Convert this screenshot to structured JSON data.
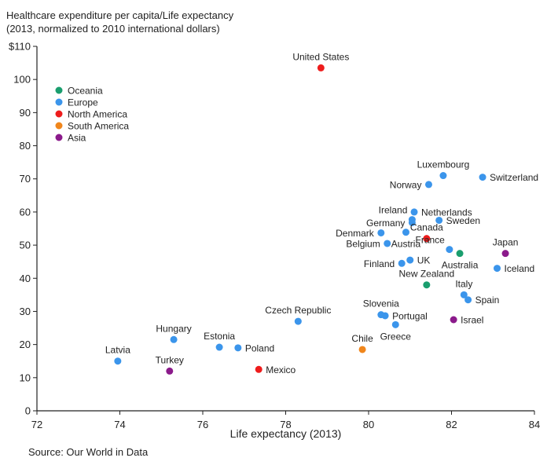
{
  "chart_data": {
    "type": "scatter",
    "title_lines": [
      "Healthcare expenditure per capita/Life expectancy",
      "(2013, normalized to 2010 international dollars)"
    ],
    "xlabel": "Life expectancy (2013)",
    "ylabel": "",
    "xlim": [
      72,
      84
    ],
    "ylim": [
      0,
      110
    ],
    "x_ticks": [
      72,
      74,
      76,
      78,
      80,
      82,
      84
    ],
    "y_ticks": [
      0,
      10,
      20,
      30,
      40,
      50,
      60,
      70,
      80,
      90,
      100,
      110
    ],
    "y_tick_labels": [
      "0",
      "10",
      "20",
      "30",
      "40",
      "50",
      "60",
      "70",
      "80",
      "90",
      "100",
      "$110"
    ],
    "grid": false,
    "legend_position": "top-left",
    "groups": [
      {
        "name": "Oceania",
        "color": "#1a9e6e"
      },
      {
        "name": "Europe",
        "color": "#3b95eb"
      },
      {
        "name": "North America",
        "color": "#ee1c1c"
      },
      {
        "name": "South America",
        "color": "#f0861c"
      },
      {
        "name": "Asia",
        "color": "#8b1a8b"
      }
    ],
    "points": [
      {
        "label": "United States",
        "group": "North America",
        "x": 78.85,
        "y": 103.5,
        "pos": "above"
      },
      {
        "label": "Luxembourg",
        "group": "Europe",
        "x": 81.8,
        "y": 71,
        "pos": "above"
      },
      {
        "label": "Switzerland",
        "group": "Europe",
        "x": 82.75,
        "y": 70.5,
        "pos": "right"
      },
      {
        "label": "Norway",
        "group": "Europe",
        "x": 81.45,
        "y": 68.3,
        "pos": "left"
      },
      {
        "label": "Netherlands",
        "group": "Europe",
        "x": 81.1,
        "y": 60,
        "pos": "right"
      },
      {
        "label": "Ireland",
        "group": "Europe",
        "x": 81.05,
        "y": 57.7,
        "pos": "above-left"
      },
      {
        "label": "Sweden",
        "group": "Europe",
        "x": 81.7,
        "y": 57.5,
        "pos": "right"
      },
      {
        "label": "Germany",
        "group": "Europe",
        "x": 81.05,
        "y": 56.8,
        "pos": "left"
      },
      {
        "label": "Canada",
        "group": "North America",
        "x": 81.4,
        "y": 52,
        "pos": "above"
      },
      {
        "label": "Denmark",
        "group": "Europe",
        "x": 80.3,
        "y": 53.7,
        "pos": "left"
      },
      {
        "label": "Austria",
        "group": "Europe",
        "x": 80.9,
        "y": 53.9,
        "pos": "below"
      },
      {
        "label": "Belgium",
        "group": "Europe",
        "x": 80.45,
        "y": 50.5,
        "pos": "left"
      },
      {
        "label": "France",
        "group": "Europe",
        "x": 81.95,
        "y": 48.7,
        "pos": "above-left"
      },
      {
        "label": "Australia",
        "group": "Oceania",
        "x": 82.2,
        "y": 47.5,
        "pos": "below"
      },
      {
        "label": "Japan",
        "group": "Asia",
        "x": 83.3,
        "y": 47.5,
        "pos": "above"
      },
      {
        "label": "UK",
        "group": "Europe",
        "x": 81.0,
        "y": 45.5,
        "pos": "right"
      },
      {
        "label": "Finland",
        "group": "Europe",
        "x": 80.8,
        "y": 44.5,
        "pos": "left"
      },
      {
        "label": "Iceland",
        "group": "Europe",
        "x": 83.1,
        "y": 43,
        "pos": "right"
      },
      {
        "label": "New Zealand",
        "group": "Oceania",
        "x": 81.4,
        "y": 38,
        "pos": "above"
      },
      {
        "label": "Italy",
        "group": "Europe",
        "x": 82.3,
        "y": 35,
        "pos": "above"
      },
      {
        "label": "Spain",
        "group": "Europe",
        "x": 82.4,
        "y": 33.5,
        "pos": "right"
      },
      {
        "label": "Slovenia",
        "group": "Europe",
        "x": 80.3,
        "y": 29,
        "pos": "above"
      },
      {
        "label": "Portugal",
        "group": "Europe",
        "x": 80.4,
        "y": 28.7,
        "pos": "right"
      },
      {
        "label": "Israel",
        "group": "Asia",
        "x": 82.05,
        "y": 27.5,
        "pos": "right"
      },
      {
        "label": "Greece",
        "group": "Europe",
        "x": 80.65,
        "y": 26,
        "pos": "below"
      },
      {
        "label": "Czech Republic",
        "group": "Europe",
        "x": 78.3,
        "y": 27,
        "pos": "above"
      },
      {
        "label": "Chile",
        "group": "South America",
        "x": 79.85,
        "y": 18.5,
        "pos": "above"
      },
      {
        "label": "Hungary",
        "group": "Europe",
        "x": 75.3,
        "y": 21.5,
        "pos": "above"
      },
      {
        "label": "Estonia",
        "group": "Europe",
        "x": 76.4,
        "y": 19.2,
        "pos": "above"
      },
      {
        "label": "Poland",
        "group": "Europe",
        "x": 76.85,
        "y": 19,
        "pos": "right"
      },
      {
        "label": "Latvia",
        "group": "Europe",
        "x": 73.95,
        "y": 15,
        "pos": "above"
      },
      {
        "label": "Turkey",
        "group": "Asia",
        "x": 75.2,
        "y": 12,
        "pos": "above"
      },
      {
        "label": "Mexico",
        "group": "North America",
        "x": 77.35,
        "y": 12.5,
        "pos": "right"
      }
    ]
  },
  "source_text": "Source: Our World in Data"
}
